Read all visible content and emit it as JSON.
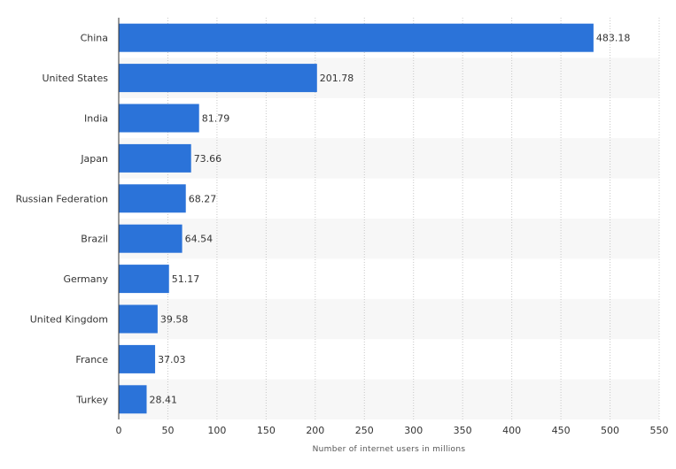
{
  "chart_data": {
    "type": "bar",
    "orientation": "horizontal",
    "title": "",
    "xlabel": "Number of internet users in millions",
    "ylabel": "",
    "categories": [
      "China",
      "United States",
      "India",
      "Japan",
      "Russian Federation",
      "Brazil",
      "Germany",
      "United Kingdom",
      "France",
      "Turkey"
    ],
    "values": [
      483.18,
      201.78,
      81.79,
      73.66,
      68.27,
      64.54,
      51.17,
      39.58,
      37.03,
      28.41
    ],
    "value_labels": [
      "483.18",
      "201.78",
      "81.79",
      "73.66",
      "68.27",
      "64.54",
      "51.17",
      "39.58",
      "37.03",
      "28.41"
    ],
    "xlim": [
      0,
      550
    ],
    "xticks": [
      0,
      50,
      100,
      150,
      200,
      250,
      300,
      350,
      400,
      450,
      500,
      550
    ],
    "xtick_labels": [
      "0",
      "50",
      "100",
      "150",
      "200",
      "250",
      "300",
      "350",
      "400",
      "450",
      "500",
      "550"
    ],
    "grid": "vertical dotted",
    "legend": "none",
    "colors": {
      "bar": "#2b73d9",
      "band": "#f7f7f7",
      "grid": "#c8c8c8",
      "axis": "#333333"
    }
  }
}
